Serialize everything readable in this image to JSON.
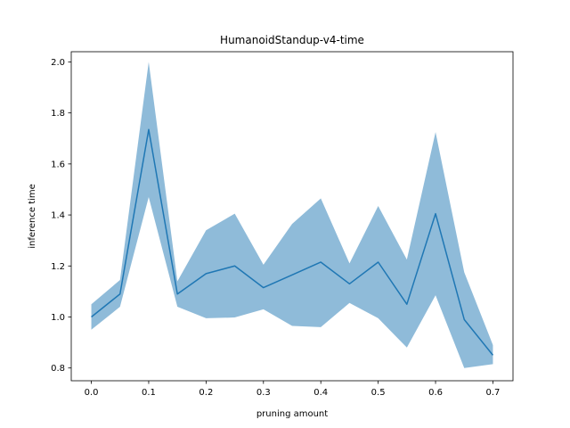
{
  "chart_data": {
    "type": "line",
    "title": "HumanoidStandup-v4-time",
    "xlabel": "pruning amount",
    "ylabel": "inference time",
    "xlim": [
      -0.035,
      0.735
    ],
    "ylim": [
      0.75,
      2.04
    ],
    "grid": false,
    "x_ticks": [
      "0.0",
      "0.1",
      "0.2",
      "0.3",
      "0.4",
      "0.5",
      "0.6",
      "0.7"
    ],
    "y_ticks": [
      "0.8",
      "1.0",
      "1.2",
      "1.4",
      "1.6",
      "1.8",
      "2.0"
    ],
    "x": [
      0.0,
      0.05,
      0.1,
      0.15,
      0.2,
      0.25,
      0.3,
      0.35,
      0.4,
      0.45,
      0.5,
      0.55,
      0.6,
      0.65,
      0.7
    ],
    "series": [
      {
        "type": "line",
        "color": "#1f77b4",
        "values": [
          1.0,
          1.09,
          1.735,
          1.09,
          1.17,
          1.2,
          1.115,
          1.165,
          1.215,
          1.13,
          1.215,
          1.05,
          1.405,
          0.99,
          0.85
        ]
      },
      {
        "type": "band",
        "color": "#1f77b4",
        "opacity": 0.5,
        "upper": [
          1.05,
          1.145,
          2.0,
          1.14,
          1.34,
          1.405,
          1.205,
          1.365,
          1.465,
          1.21,
          1.435,
          1.225,
          1.725,
          1.175,
          0.89
        ],
        "lower": [
          0.95,
          1.04,
          1.47,
          1.04,
          0.995,
          0.998,
          1.03,
          0.965,
          0.96,
          1.055,
          0.995,
          0.88,
          1.085,
          0.8,
          0.815
        ]
      }
    ]
  }
}
